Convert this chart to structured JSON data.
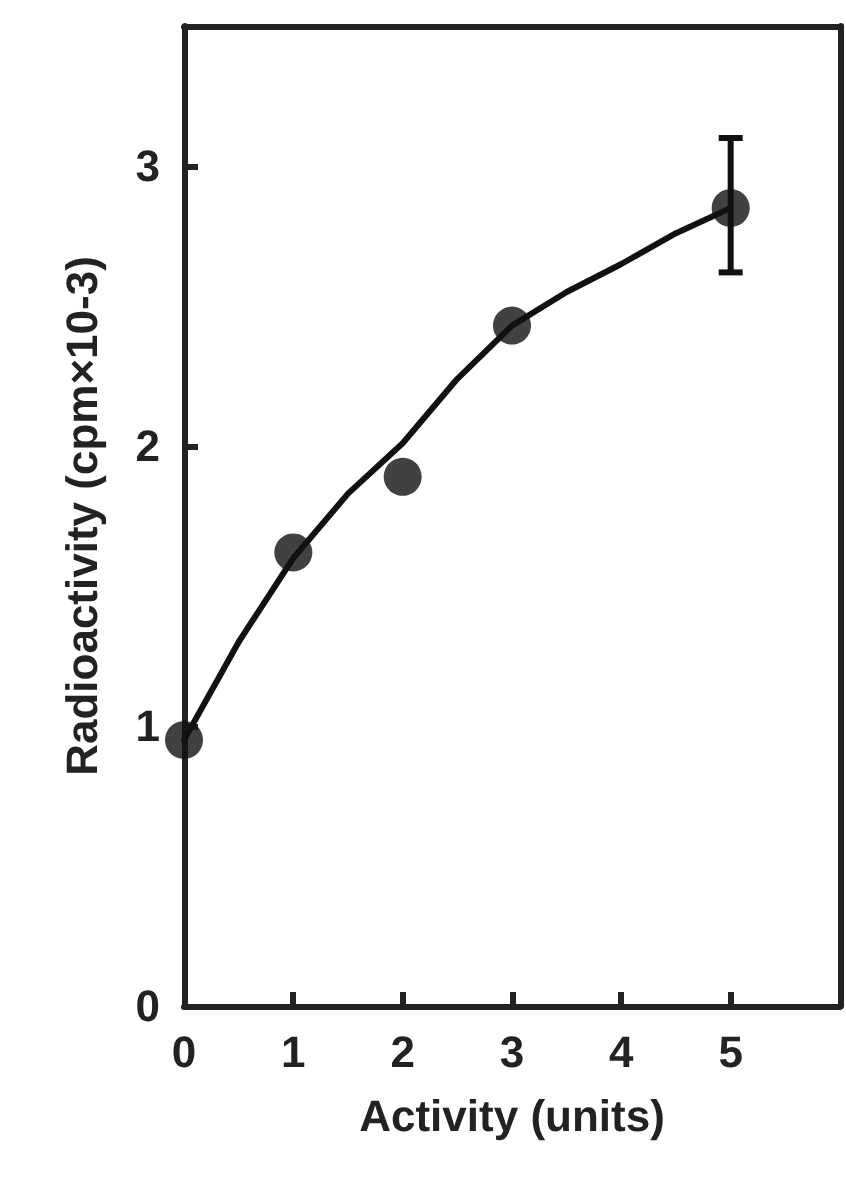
{
  "chart_data": {
    "type": "scatter",
    "xlabel": "Activity (units)",
    "ylabel": "Radioactivity (cpm×10-3)",
    "xlim": [
      0,
      6
    ],
    "xticks": [
      0,
      1,
      2,
      3,
      4,
      5
    ],
    "ylim": [
      0,
      3.5
    ],
    "yticks": [
      0,
      1,
      2,
      3
    ],
    "grid": false,
    "marker": "circle",
    "series": [
      {
        "color": "#111111",
        "x": [
          0,
          1,
          2,
          3,
          5
        ],
        "values": [
          0.95,
          1.62,
          1.89,
          2.43,
          2.85
        ],
        "errors": [
          null,
          null,
          null,
          null,
          [
            2.62,
            3.1
          ]
        ]
      },
      {
        "type": "line",
        "color": "#111111",
        "line_style": "solid",
        "marker": "none",
        "x": [
          0,
          0.5,
          1,
          1.5,
          2,
          2.5,
          3,
          3.5,
          4,
          4.5,
          5
        ],
        "values": [
          0.95,
          1.3,
          1.6,
          1.83,
          2.01,
          2.24,
          2.43,
          2.55,
          2.65,
          2.76,
          2.85
        ]
      }
    ]
  }
}
